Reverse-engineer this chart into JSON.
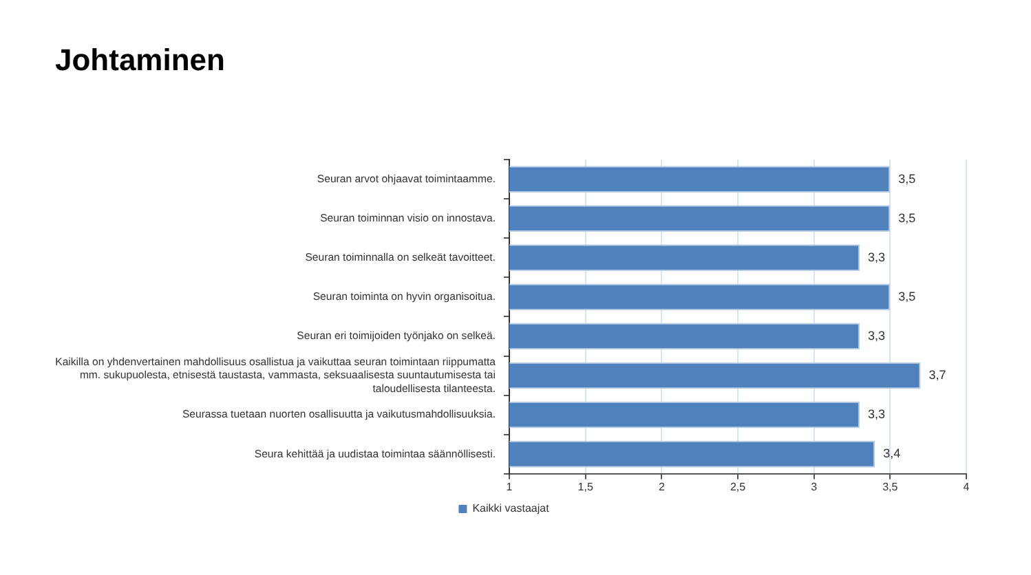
{
  "chart_data": {
    "type": "bar",
    "title": "Johtaminen",
    "orientation": "horizontal",
    "categories": [
      "Seuran arvot ohjaavat toimintaamme.",
      "Seuran toiminnan visio on innostava.",
      "Seuran toiminnalla on selkeät tavoitteet.",
      "Seuran toiminta on hyvin organisoitua.",
      "Seuran eri toimijoiden työnjako on selkeä.",
      "Kaikilla on yhdenvertainen mahdollisuus osallistua ja vaikuttaa seuran toimintaan riippumatta mm. sukupuolesta, etnisestä taustasta, vammasta, seksuaalisesta suuntautumisesta tai taloudellisesta tilanteesta.",
      "Seurassa tuetaan nuorten osallisuutta ja vaikutusmahdollisuuksia.",
      "Seura kehittää ja uudistaa toimintaa säännöllisesti."
    ],
    "series": [
      {
        "name": "Kaikki vastaajat",
        "color": "#4f81bd",
        "values": [
          3.5,
          3.5,
          3.3,
          3.5,
          3.3,
          3.7,
          3.3,
          3.4
        ],
        "value_labels": [
          "3,5",
          "3,5",
          "3,3",
          "3,5",
          "3,3",
          "3,7",
          "3,3",
          "3,4"
        ]
      }
    ],
    "xlim": [
      1,
      4
    ],
    "xticks": [
      1,
      {
        "value": 1.5,
        "label": "1,5"
      },
      2,
      {
        "value": 2.5,
        "label": "2,5"
      },
      3,
      {
        "value": 3.5,
        "label": "3,5"
      },
      4
    ],
    "grid": "x",
    "legend": "bottom"
  }
}
